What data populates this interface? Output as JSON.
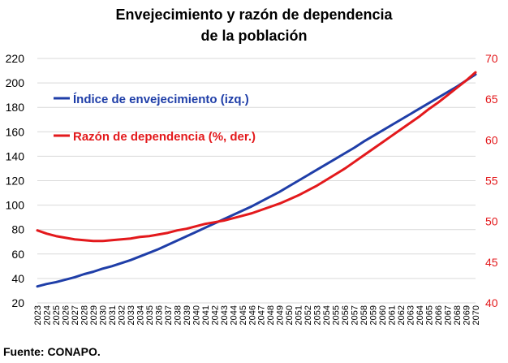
{
  "chart_data": {
    "type": "line",
    "title_line1": "Envejecimiento y razón de dependencia",
    "title_line2": "de la población",
    "x": [
      2023,
      2024,
      2025,
      2026,
      2027,
      2028,
      2029,
      2030,
      2031,
      2032,
      2033,
      2034,
      2035,
      2036,
      2037,
      2038,
      2039,
      2040,
      2041,
      2042,
      2043,
      2044,
      2045,
      2046,
      2047,
      2048,
      2049,
      2050,
      2051,
      2052,
      2053,
      2054,
      2055,
      2056,
      2057,
      2058,
      2059,
      2060,
      2061,
      2062,
      2063,
      2064,
      2065,
      2066,
      2067,
      2068,
      2069,
      2070
    ],
    "y_left_lim": [
      20,
      220
    ],
    "y_left_ticks": [
      20,
      40,
      60,
      80,
      100,
      120,
      140,
      160,
      180,
      200,
      220
    ],
    "y_right_lim": [
      40,
      70
    ],
    "y_right_ticks": [
      40,
      45,
      50,
      55,
      60,
      65,
      70
    ],
    "grid": true,
    "series": [
      {
        "name": "Índice de envejecimiento (izq.)",
        "axis": "left",
        "color": "#1f3ea8",
        "values": [
          33.5,
          35.5,
          37,
          39,
          41,
          43.5,
          45.5,
          48,
          50,
          52.5,
          55,
          58,
          61,
          64,
          67.5,
          71,
          74.5,
          78,
          81.5,
          85,
          88.5,
          92,
          95.5,
          99,
          103,
          107,
          111,
          115.5,
          120,
          124.5,
          129,
          133.5,
          138,
          142.5,
          147,
          152,
          156.5,
          161,
          165.5,
          170,
          174.5,
          179,
          183.5,
          188,
          192.5,
          197,
          202,
          207
        ]
      },
      {
        "name": "Razón de dependencia (%, der.)",
        "axis": "right",
        "color": "#e3191c",
        "values": [
          48.9,
          48.5,
          48.2,
          48.0,
          47.8,
          47.7,
          47.6,
          47.6,
          47.7,
          47.8,
          47.9,
          48.1,
          48.2,
          48.4,
          48.6,
          48.9,
          49.1,
          49.4,
          49.7,
          49.9,
          50.1,
          50.4,
          50.7,
          51.0,
          51.4,
          51.8,
          52.2,
          52.7,
          53.2,
          53.8,
          54.4,
          55.1,
          55.8,
          56.5,
          57.3,
          58.1,
          58.9,
          59.7,
          60.5,
          61.3,
          62.1,
          62.9,
          63.8,
          64.6,
          65.5,
          66.4,
          67.3,
          68.3
        ]
      }
    ],
    "source": "Fuente: CONAPO."
  },
  "colors": {
    "blue": "#1f3ea8",
    "red": "#e3191c",
    "grid": "#d9d9d9"
  }
}
